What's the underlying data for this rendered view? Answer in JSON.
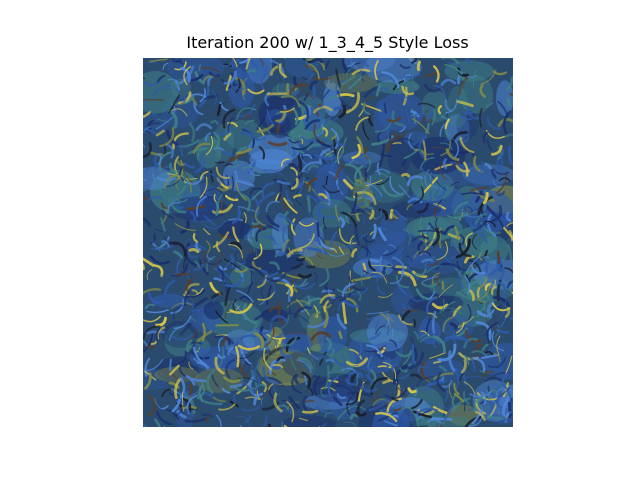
{
  "figure": {
    "title": "Iteration 200 w/ 1_3_4_5 Style Loss"
  },
  "image": {
    "description_icon": "stylized-texture-image",
    "palette": {
      "base": "#2a4a6e",
      "deep_blue": "#1b2f6b",
      "mid_blue": "#2f5aa8",
      "bright_blue": "#4f86d6",
      "teal": "#3f7f86",
      "olive": "#7f8a4a",
      "yellow": "#d6c54a",
      "dark": "#1a1e2a",
      "brown": "#5a3e2a"
    }
  }
}
